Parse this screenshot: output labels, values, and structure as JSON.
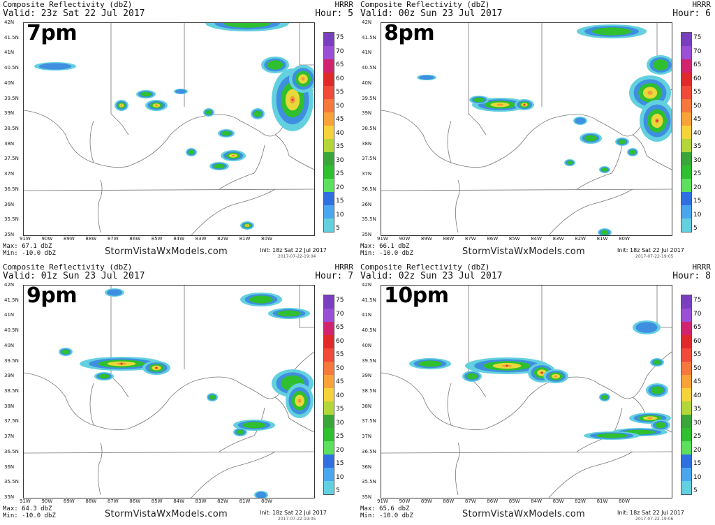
{
  "panels": [
    {
      "title": "Composite Reflectivity (dbZ)",
      "model": "HRRR",
      "valid": "Valid: 23z Sat 22 Jul 2017",
      "hour": "Hour: 5",
      "time_label": "7pm",
      "max": "Max: 67.1 dbZ",
      "min": "Min: -10.0 dbZ",
      "credit": "StormVistaWxModels.com",
      "init": "Init: 18z Sat 22 Jul 2017",
      "stamp": "2017-07-22-19:04"
    },
    {
      "title": "Composite Reflectivity (dbZ)",
      "model": "HRRR",
      "valid": "Valid: 00z Sun 23 Jul 2017",
      "hour": "Hour: 6",
      "time_label": "8pm",
      "max": "Max: 66.1 dbZ",
      "min": "Min: -10.0 dbZ",
      "credit": "StormVistaWxModels.com",
      "init": "Init: 18z Sat 22 Jul 2017",
      "stamp": "2017-07-22-19:05"
    },
    {
      "title": "Composite Reflectivity (dbZ)",
      "model": "HRRR",
      "valid": "Valid: 01z Sun 23 Jul 2017",
      "hour": "Hour: 7",
      "time_label": "9pm",
      "max": "Max: 64.3 dbZ",
      "min": "Min: -10.0 dbZ",
      "credit": "StormVistaWxModels.com",
      "init": "Init: 18z Sat 22 Jul 2017",
      "stamp": "2017-07-22-19:05"
    },
    {
      "title": "Composite Reflectivity (dbZ)",
      "model": "HRRR",
      "valid": "Valid: 02z Sun 23 Jul 2017",
      "hour": "Hour: 8",
      "time_label": "10pm",
      "max": "Max: 65.6 dbZ",
      "min": "Min: -10.0 dbZ",
      "credit": "StormVistaWxModels.com",
      "init": "Init: 18z Sat 22 Jul 2017",
      "stamp": "2017-07-22-19:06"
    }
  ],
  "lat_labels": [
    "42N",
    "41.5N",
    "41N",
    "40.5N",
    "40N",
    "39.5N",
    "39N",
    "38.5N",
    "38N",
    "37.5N",
    "37N",
    "36.5N",
    "36N",
    "35.5N",
    "35N"
  ],
  "lon_labels": [
    "91W",
    "90W",
    "89W",
    "88W",
    "87W",
    "86W",
    "85W",
    "84W",
    "83W",
    "82W",
    "81W",
    "80W"
  ],
  "colorbar_ticks": [
    "75",
    "70",
    "65",
    "60",
    "55",
    "50",
    "45",
    "40",
    "35",
    "30",
    "25",
    "20",
    "15",
    "10",
    "5"
  ],
  "colorbar_colors": [
    "#7a3fbf",
    "#9b4fd6",
    "#d0246e",
    "#e02a2a",
    "#f04a3a",
    "#f5783c",
    "#f9a23a",
    "#f6d23c",
    "#b3d63a",
    "#3aa63a",
    "#2fbf2f",
    "#5de05d",
    "#2f6fe0",
    "#4aa6ef",
    "#63d0df"
  ],
  "echo_colors": {
    "light": "#63d0df",
    "blue": "#3f8fe0",
    "green": "#2fbf2f",
    "dkgreen": "#1f8f1f",
    "yellow": "#e8d83a",
    "orange": "#f09a3a",
    "red": "#e0302a",
    "magenta": "#c0206a"
  }
}
